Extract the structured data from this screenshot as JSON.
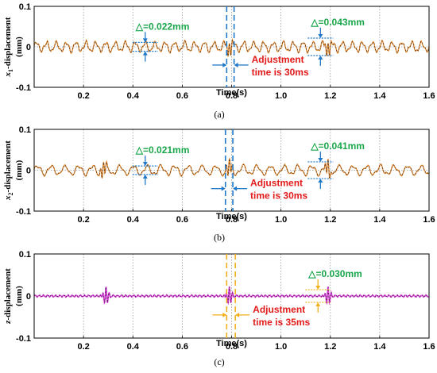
{
  "colors": {
    "orange": "#e8892b",
    "dark_dash": "#222222",
    "magenta": "#e040e0",
    "blue": "#1f78c8",
    "gold": "#f2b01e",
    "green": "#1aa64a",
    "red": "#e21a1a",
    "grid": "#9a9a9a"
  },
  "chart_data": [
    {
      "type": "line",
      "caption": "(a)",
      "ylabel_var": "x",
      "ylabel_sub": "1",
      "ylabel_rest": "-displacement",
      "ylabel_unit": "(mm)",
      "xlabel": "Time(s)",
      "xlim": [
        0,
        1.6
      ],
      "ylim": [
        -0.1,
        0.1
      ],
      "xticks": [
        "0.2",
        "0.4",
        "0.6",
        "0.8",
        "1.0",
        "1.2",
        "1.4",
        "1.6"
      ],
      "yticks": [
        "0.1",
        "0",
        "-0.1"
      ],
      "grid": true,
      "signal": {
        "amplitude": 0.011,
        "frequency_hz": 25,
        "disturbances_s": [
          0.79,
          1.19
        ]
      },
      "adjust_lines_s": [
        0.78,
        0.81
      ],
      "delta_left": {
        "text": "△=0.022mm",
        "value_mm": 0.022,
        "at_s": 0.45
      },
      "delta_right": {
        "text": "△=0.043mm",
        "value_mm": 0.043,
        "at_s": 1.16
      },
      "adjust_text": [
        "Adjustment",
        "time is 30ms"
      ],
      "adjust_ms": 30
    },
    {
      "type": "line",
      "caption": "(b)",
      "ylabel_var": "x",
      "ylabel_sub": "2",
      "ylabel_rest": "-displacement",
      "ylabel_unit": "(mm)",
      "xlabel": "Time(s)",
      "xlim": [
        0,
        1.6
      ],
      "ylim": [
        -0.1,
        0.1
      ],
      "xticks": [
        "0.2",
        "0.4",
        "0.6",
        "0.8",
        "1.0",
        "1.2",
        "1.4",
        "1.6"
      ],
      "yticks": [
        "0.1",
        "0",
        "-0.1"
      ],
      "grid": true,
      "signal": {
        "amplitude": 0.0105,
        "frequency_hz": 18,
        "disturbances_s": [
          0.28,
          0.79,
          1.19
        ]
      },
      "adjust_lines_s": [
        0.775,
        0.805
      ],
      "delta_left": {
        "text": "△=0.021mm",
        "value_mm": 0.021,
        "at_s": 0.45
      },
      "delta_right": {
        "text": "△=0.041mm",
        "value_mm": 0.041,
        "at_s": 1.16
      },
      "adjust_text": [
        "Adjustment",
        "time is 30ms"
      ],
      "adjust_ms": 30
    },
    {
      "type": "line",
      "caption": "(c)",
      "ylabel_var": "z",
      "ylabel_sub": "",
      "ylabel_rest": "-displacement",
      "ylabel_unit": "(mm)",
      "xlabel": "Time(s)",
      "xlim": [
        0,
        1.6
      ],
      "ylim": [
        -0.1,
        0.1
      ],
      "xticks": [
        "0.2",
        "0.4",
        "0.6",
        "0.8",
        "1.0",
        "1.2",
        "1.4",
        "1.6"
      ],
      "yticks": [
        "0.1",
        "0",
        "-0.1"
      ],
      "grid": true,
      "signal": {
        "amplitude": 0.002,
        "frequency_hz": 60,
        "disturbances_s": [
          0.29,
          0.79,
          1.19
        ]
      },
      "adjust_lines_s": [
        0.78,
        0.815
      ],
      "delta_left": null,
      "delta_right": {
        "text": "△=0.030mm",
        "value_mm": 0.03,
        "at_s": 1.15
      },
      "adjust_text": [
        "Adjustment",
        "time is 35ms"
      ],
      "adjust_ms": 35
    }
  ]
}
